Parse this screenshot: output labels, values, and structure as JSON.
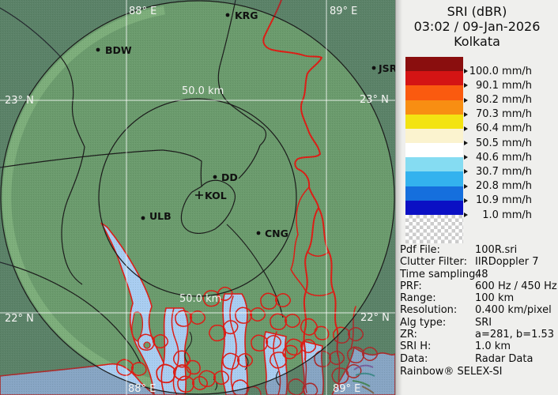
{
  "header": {
    "title": "SRI (dBR)",
    "timestamp": "03:02 / 09-Jan-2026",
    "station": "Kolkata"
  },
  "legend": {
    "entries": [
      {
        "label": "100.0 mm/h",
        "color": "#8a0e0e"
      },
      {
        "label": "90.1 mm/h",
        "color": "#d41414"
      },
      {
        "label": "80.2 mm/h",
        "color": "#fa5a0f"
      },
      {
        "label": "70.3 mm/h",
        "color": "#f88e12"
      },
      {
        "label": "60.4 mm/h",
        "color": "#f3e312"
      },
      {
        "label": "50.5 mm/h",
        "color": "#fbf3cf"
      },
      {
        "label": "40.6 mm/h",
        "color": "#ffffff"
      },
      {
        "label": "30.7 mm/h",
        "color": "#85dcf2"
      },
      {
        "label": "20.8 mm/h",
        "color": "#33b2ee"
      },
      {
        "label": "10.9 mm/h",
        "color": "#156fdd"
      },
      {
        "label": "1.0 mm/h",
        "color": "#0b10c4"
      }
    ],
    "nodata_color_a": "#ffffff",
    "nodata_color_b": "#cccccc"
  },
  "metadata": {
    "rows": [
      {
        "label": "Pdf File:",
        "value": "100R.sri"
      },
      {
        "label": "Clutter Filter:",
        "value": "IIRDoppler 7"
      },
      {
        "label": "Time sampling:",
        "value": "48"
      },
      {
        "label": "PRF:",
        "value": "600 Hz / 450 Hz"
      },
      {
        "label": "Range:",
        "value": "100 km"
      },
      {
        "label": "Resolution:",
        "value": "0.400 km/pixel"
      },
      {
        "label": "Alg type:",
        "value": "SRI"
      },
      {
        "label": "ZR:",
        "value": "a=281, b=1.53"
      },
      {
        "label": "SRI H:",
        "value": "1.0 km"
      },
      {
        "label": "Data:",
        "value": "Radar Data"
      }
    ],
    "footer": "Rainbow® SELEX-SI"
  },
  "map": {
    "grid": {
      "lon_top": [
        "88° E",
        "89° E"
      ],
      "lon_bottom": [
        "88° E",
        "89° E"
      ],
      "lat_left": [
        "23° N",
        "22° N"
      ],
      "lat_right": [
        "23° N",
        "22° N"
      ]
    },
    "range_ring_label": "50.0 km",
    "cities": [
      {
        "name": "BDW"
      },
      {
        "name": "KRG"
      },
      {
        "name": "JSR"
      },
      {
        "name": "DD"
      },
      {
        "name": "KOL"
      },
      {
        "name": "ULB"
      },
      {
        "name": "CNG"
      }
    ],
    "colors": {
      "land_inner": "#6b9b6d",
      "land_outer_overlay": "rgba(56,72,94,0.30)",
      "water": "#a9cdf1",
      "border_red": "#dd1d15",
      "boundary_black": "#1b1b1b",
      "grid_line": "rgba(255,255,255,0.8)",
      "fringe": "#96c78e"
    }
  }
}
